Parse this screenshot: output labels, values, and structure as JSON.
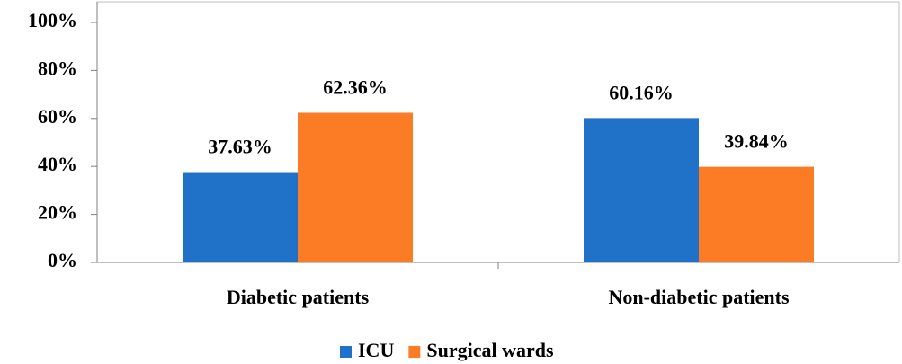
{
  "chart_data": {
    "type": "bar",
    "categories": [
      "Diabetic patients",
      "Non-diabetic patients"
    ],
    "series": [
      {
        "name": "ICU",
        "color": "#1f72c8",
        "values": [
          37.63,
          60.16
        ],
        "value_labels": [
          "37.63%",
          "60.16%"
        ]
      },
      {
        "name": "Surgical wards",
        "color": "#fb7c25",
        "values": [
          62.36,
          39.84
        ],
        "value_labels": [
          "62.36%",
          "39.84%"
        ]
      }
    ],
    "ylim": [
      0,
      100
    ],
    "yticks": [
      {
        "value": 0,
        "label": "0%"
      },
      {
        "value": 20,
        "label": "20%"
      },
      {
        "value": 40,
        "label": "40%"
      },
      {
        "value": 60,
        "label": "60%"
      },
      {
        "value": 80,
        "label": "80%"
      },
      {
        "value": 100,
        "label": "100%"
      }
    ],
    "legend": "bottom"
  }
}
